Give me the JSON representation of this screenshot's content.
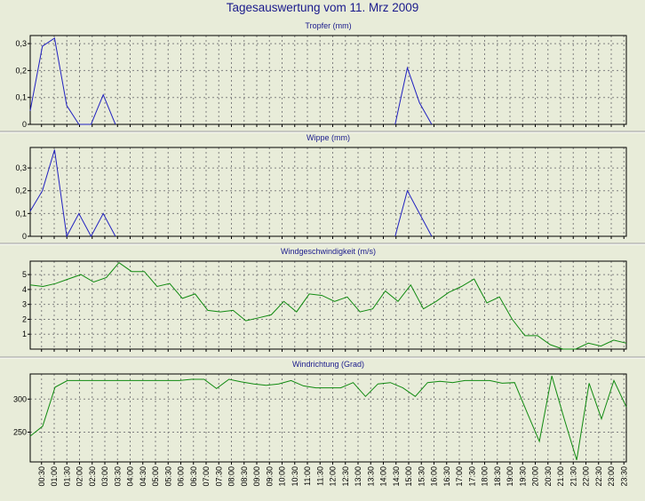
{
  "title": "Tagesauswertung vom 11. Mrz 2009",
  "colors": {
    "background": "#e8ecd9",
    "rain_line": "#2020c0",
    "wind_line": "#108a10",
    "title": "#1a1a8c",
    "grid": "#808080"
  },
  "chart_data": [
    {
      "type": "line",
      "title": "Tropfer (mm)",
      "ylim": [
        0,
        0.33
      ],
      "yticks": [
        0,
        0.1,
        0.2,
        0.3
      ],
      "ytick_labels": [
        "0",
        "0,1",
        "0,2",
        "0,3"
      ],
      "color": "#2020c0",
      "grid": true,
      "values": [
        0.05,
        0.29,
        0.32,
        0.07,
        0,
        0,
        0.11,
        0,
        null,
        null,
        null,
        null,
        null,
        null,
        null,
        null,
        null,
        null,
        null,
        null,
        null,
        null,
        null,
        null,
        null,
        null,
        null,
        null,
        null,
        null,
        0,
        0.21,
        0.08,
        0,
        null,
        null,
        null,
        null,
        null,
        null,
        null,
        null,
        null,
        null,
        null,
        null,
        null,
        null,
        null,
        null
      ]
    },
    {
      "type": "line",
      "title": "Wippe (mm)",
      "ylim": [
        0,
        0.39
      ],
      "yticks": [
        0,
        0.1,
        0.2,
        0.3
      ],
      "ytick_labels": [
        "0",
        "0,1",
        "0,2",
        "0,3"
      ],
      "color": "#2020c0",
      "grid": true,
      "values": [
        0.11,
        0.2,
        0.38,
        0,
        0.1,
        0,
        0.1,
        0,
        null,
        null,
        null,
        null,
        null,
        null,
        null,
        null,
        null,
        null,
        null,
        null,
        null,
        null,
        null,
        null,
        null,
        null,
        null,
        null,
        null,
        null,
        0,
        0.2,
        0.1,
        0,
        null,
        null,
        null,
        null,
        null,
        null,
        null,
        null,
        null,
        null,
        null,
        null,
        null,
        null,
        null,
        null
      ]
    },
    {
      "type": "line",
      "title": "Windgeschwindigkeit (m/s)",
      "ylim": [
        0,
        5.9
      ],
      "yticks": [
        1,
        2,
        3,
        4,
        5
      ],
      "ytick_labels": [
        "1",
        "2",
        "3",
        "4",
        "5"
      ],
      "color": "#108a10",
      "grid": true,
      "values": [
        4.3,
        4.2,
        4.4,
        4.7,
        5.0,
        4.5,
        4.8,
        5.8,
        5.2,
        5.2,
        4.2,
        4.4,
        3.4,
        3.7,
        2.6,
        2.5,
        2.6,
        1.9,
        2.1,
        2.3,
        3.2,
        2.5,
        3.7,
        3.6,
        3.2,
        3.5,
        2.5,
        2.7,
        3.9,
        3.2,
        4.3,
        2.7,
        3.2,
        3.8,
        4.2,
        4.7,
        3.1,
        3.5,
        2.0,
        0.9,
        0.9,
        0.3,
        0,
        0,
        0.4,
        0.2,
        0.6,
        0.4
      ]
    },
    {
      "type": "line",
      "title": "Windrichtung (Grad)",
      "ylim": [
        205,
        338
      ],
      "yticks": [
        250,
        300
      ],
      "ytick_labels": [
        "250",
        "300"
      ],
      "color": "#108a10",
      "grid": true,
      "values": [
        244,
        259,
        318,
        328,
        328,
        328,
        328,
        328,
        328,
        328,
        328,
        328,
        328,
        330,
        330,
        316,
        330,
        326,
        323,
        321,
        323,
        328,
        320,
        317,
        317,
        317,
        325,
        304,
        323,
        325,
        317,
        304,
        325,
        327,
        325,
        328,
        328,
        328,
        324,
        325,
        280,
        236,
        335,
        270,
        208,
        324,
        270,
        328,
        288
      ]
    }
  ],
  "x_axis": {
    "ticks": [
      "00:30",
      "01:00",
      "01:30",
      "02:00",
      "02:30",
      "03:00",
      "03:30",
      "04:00",
      "04:30",
      "05:00",
      "05:30",
      "06:00",
      "06:30",
      "07:00",
      "07:30",
      "08:00",
      "08:30",
      "09:00",
      "09:30",
      "10:00",
      "10:30",
      "11:00",
      "11:30",
      "12:00",
      "12:30",
      "13:00",
      "13:30",
      "14:00",
      "14:30",
      "15:00",
      "15:30",
      "16:00",
      "16:30",
      "17:00",
      "17:30",
      "18:00",
      "18:30",
      "19:00",
      "19:30",
      "20:00",
      "20:30",
      "21:00",
      "21:30",
      "22:00",
      "22:30",
      "23:00",
      "23:30"
    ]
  }
}
